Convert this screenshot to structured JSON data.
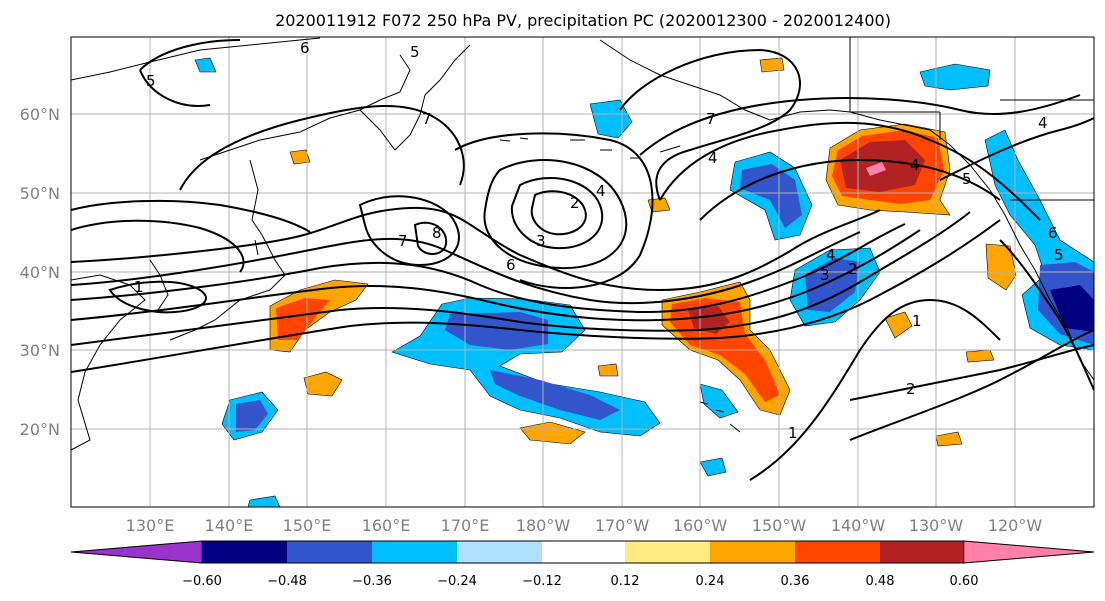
{
  "title": "2020011912 F072 250 hPa PV, precipitation PC (2020012300 - 2020012400)",
  "map": {
    "lat_ticks": [
      "60°N",
      "50°N",
      "40°N",
      "30°N",
      "20°N"
    ],
    "lon_ticks": [
      "130°E",
      "140°E",
      "150°E",
      "160°E",
      "170°E",
      "180°W",
      "170°W",
      "160°W",
      "150°W",
      "140°W",
      "130°W",
      "120°W"
    ],
    "contour_labels": [
      "6",
      "5",
      "5",
      "7",
      "7",
      "4",
      "4",
      "4",
      "5",
      "4",
      "8",
      "7",
      "2",
      "3",
      "6",
      "4",
      "3",
      "2",
      "6",
      "5",
      "1",
      "1",
      "2",
      "1"
    ]
  },
  "colorbar": {
    "colors": [
      "#9933cc",
      "#000080",
      "#3355cc",
      "#00bfff",
      "#b0e0ff",
      "#ffffff",
      "#ffec80",
      "#ffa500",
      "#ff4500",
      "#b22222",
      "#ff80aa"
    ],
    "labels": [
      "−0.60",
      "−0.48",
      "−0.36",
      "−0.24",
      "−0.12",
      "0.12",
      "0.24",
      "0.36",
      "0.48",
      "0.60"
    ]
  }
}
